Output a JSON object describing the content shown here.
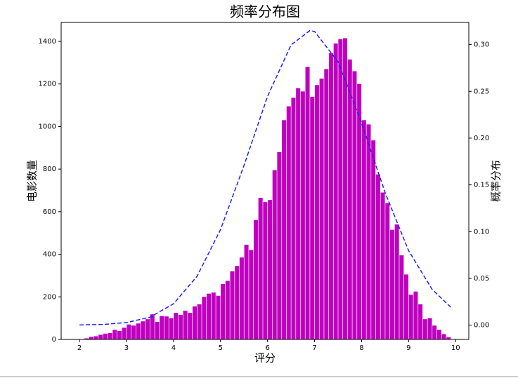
{
  "chart_data": {
    "type": "histogram",
    "title": "频率分布图",
    "x_label": "评分",
    "y_label": "电影数量",
    "y2_label": "概率分布",
    "bins": [
      2.1,
      2.2,
      2.3,
      2.4,
      2.5,
      2.6,
      2.7,
      2.8,
      2.9,
      3.0,
      3.1,
      3.2,
      3.3,
      3.4,
      3.5,
      3.6,
      3.7,
      3.8,
      3.9,
      4.0,
      4.1,
      4.2,
      4.3,
      4.4,
      4.5,
      4.6,
      4.7,
      4.8,
      4.9,
      5.0,
      5.1,
      5.2,
      5.3,
      5.4,
      5.5,
      5.6,
      5.7,
      5.8,
      5.9,
      6.0,
      6.1,
      6.2,
      6.3,
      6.4,
      6.5,
      6.6,
      6.7,
      6.8,
      6.9,
      7.0,
      7.1,
      7.2,
      7.3,
      7.4,
      7.5,
      7.6,
      7.7,
      7.8,
      7.9,
      8.0,
      8.1,
      8.2,
      8.3,
      8.4,
      8.5,
      8.6,
      8.7,
      8.8,
      8.9,
      9.0,
      9.1,
      9.2,
      9.3,
      9.4,
      9.5,
      9.6,
      9.7,
      9.8,
      9.9
    ],
    "values": [
      5,
      12,
      15,
      22,
      27,
      30,
      45,
      40,
      55,
      70,
      65,
      75,
      85,
      95,
      118,
      82,
      110,
      108,
      100,
      125,
      115,
      135,
      125,
      155,
      165,
      200,
      215,
      220,
      205,
      260,
      275,
      320,
      345,
      385,
      445,
      420,
      560,
      665,
      645,
      655,
      795,
      880,
      1030,
      1095,
      1135,
      1180,
      1165,
      1280,
      1140,
      1195,
      1225,
      1270,
      1345,
      1390,
      1410,
      1415,
      1315,
      1260,
      1200,
      1030,
      1010,
      935,
      775,
      690,
      640,
      515,
      540,
      395,
      305,
      210,
      225,
      165,
      95,
      100,
      65,
      45,
      25,
      10
    ],
    "color": "#bf00bf",
    "curve": {
      "color": "#1f1fff",
      "axis": "y2",
      "x": [
        2.0,
        2.5,
        3.0,
        3.5,
        4.0,
        4.5,
        5.0,
        5.5,
        6.0,
        6.5,
        6.9,
        7.0,
        7.5,
        8.0,
        8.5,
        9.0,
        9.5,
        9.9
      ],
      "values": [
        0.0002,
        0.0007,
        0.0027,
        0.0085,
        0.0228,
        0.0522,
        0.1022,
        0.1709,
        0.2447,
        0.2997,
        0.315,
        0.314,
        0.2816,
        0.216,
        0.1417,
        0.0796,
        0.0382,
        0.019
      ]
    },
    "xlim": [
      1.61,
      10.28
    ],
    "ylim": [
      0,
      1489
    ],
    "y2lim": [
      -0.0153,
      0.3237
    ],
    "xticks": [
      2,
      3,
      4,
      5,
      6,
      7,
      8,
      9,
      10
    ],
    "yticks": [
      0,
      200,
      400,
      600,
      800,
      1000,
      1200,
      1400
    ],
    "y2ticks": [
      {
        "value": 0,
        "label": "0.00"
      },
      {
        "value": 0.05,
        "label": "0.05"
      },
      {
        "value": 0.1,
        "label": "0.10"
      },
      {
        "value": 0.15,
        "label": "0.15"
      },
      {
        "value": 0.2,
        "label": "0.20"
      },
      {
        "value": 0.25,
        "label": "0.25"
      },
      {
        "value": 0.3,
        "label": "0.30"
      }
    ]
  }
}
